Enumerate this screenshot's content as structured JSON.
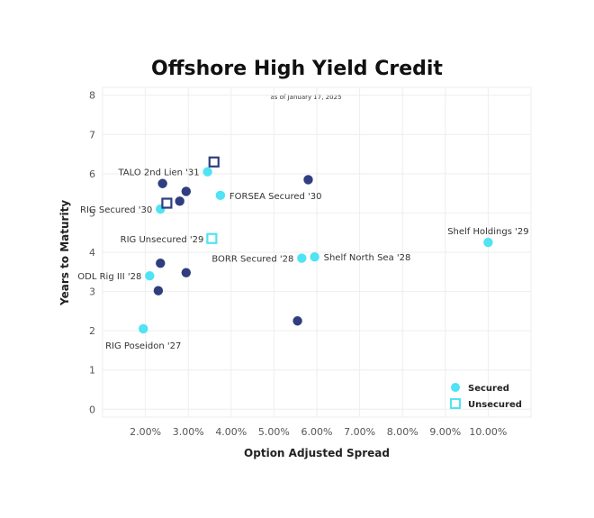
{
  "chart_data": {
    "type": "scatter",
    "title": "Offshore High Yield Credit",
    "subtitle": "as of January 17, 2025",
    "xlabel": "Option Adjusted Spread",
    "ylabel": "Years to Maturity",
    "xlim": [
      1.0,
      11.0
    ],
    "ylim": [
      -0.2,
      8.2
    ],
    "xticks": [
      2,
      3,
      4,
      5,
      6,
      7,
      8,
      9,
      10
    ],
    "xtick_labels": [
      "2.00%",
      "3.00%",
      "4.00%",
      "5.00%",
      "6.00%",
      "7.00%",
      "8.00%",
      "9.00%",
      "10.00%"
    ],
    "yticks": [
      0,
      1,
      2,
      3,
      4,
      5,
      6,
      7,
      8
    ],
    "ytick_labels": [
      "0",
      "1",
      "2",
      "3",
      "4",
      "5",
      "6",
      "7",
      "8"
    ],
    "grid": true,
    "legend_position": "bottom-right",
    "legend": [
      {
        "label": "Secured",
        "marker": "circle",
        "color": "#4fe3f4"
      },
      {
        "label": "Unsecured",
        "marker": "square",
        "color": "#4fe3f4"
      }
    ],
    "colors": {
      "secured_highlight": "#4fe3f4",
      "peer": "#2e3e7e",
      "unsecured_dark": "#2e3e7e",
      "unsecured_light": "#4fe3f4"
    },
    "points": [
      {
        "x": 3.45,
        "y": 6.05,
        "kind": "secured",
        "color": "#4fe3f4",
        "label": "TALO 2nd Lien '31",
        "label_pos": "left"
      },
      {
        "x": 3.6,
        "y": 6.3,
        "kind": "unsecured",
        "color": "#2e3e7e",
        "label": "",
        "label_pos": ""
      },
      {
        "x": 2.35,
        "y": 5.1,
        "kind": "secured",
        "color": "#4fe3f4",
        "label": "RIG Secured '30",
        "label_pos": "left"
      },
      {
        "x": 2.5,
        "y": 5.25,
        "kind": "unsecured",
        "color": "#2e3e7e",
        "label": "",
        "label_pos": ""
      },
      {
        "x": 3.75,
        "y": 5.45,
        "kind": "secured",
        "color": "#4fe3f4",
        "label": "FORSEA Secured '30",
        "label_pos": "right"
      },
      {
        "x": 3.55,
        "y": 4.35,
        "kind": "unsecured",
        "color": "#4fe3f4",
        "label": "RIG Unsecured '29",
        "label_pos": "left"
      },
      {
        "x": 10.0,
        "y": 4.25,
        "kind": "secured",
        "color": "#4fe3f4",
        "label": "Shelf Holdings '29",
        "label_pos": "above"
      },
      {
        "x": 5.65,
        "y": 3.85,
        "kind": "secured",
        "color": "#4fe3f4",
        "label": "BORR Secured '28",
        "label_pos": "left"
      },
      {
        "x": 5.95,
        "y": 3.88,
        "kind": "secured",
        "color": "#4fe3f4",
        "label": "Shelf North Sea '28",
        "label_pos": "right"
      },
      {
        "x": 2.1,
        "y": 3.4,
        "kind": "secured",
        "color": "#4fe3f4",
        "label": "ODL Rig III '28",
        "label_pos": "left"
      },
      {
        "x": 1.95,
        "y": 2.05,
        "kind": "secured",
        "color": "#4fe3f4",
        "label": "RIG Poseidon '27",
        "label_pos": "below"
      },
      {
        "x": 2.4,
        "y": 5.75,
        "kind": "peer",
        "color": "#2e3e7e",
        "label": "",
        "label_pos": ""
      },
      {
        "x": 2.95,
        "y": 5.55,
        "kind": "peer",
        "color": "#2e3e7e",
        "label": "",
        "label_pos": ""
      },
      {
        "x": 2.8,
        "y": 5.3,
        "kind": "peer",
        "color": "#2e3e7e",
        "label": "",
        "label_pos": ""
      },
      {
        "x": 5.8,
        "y": 5.85,
        "kind": "peer",
        "color": "#2e3e7e",
        "label": "",
        "label_pos": ""
      },
      {
        "x": 2.35,
        "y": 3.72,
        "kind": "peer",
        "color": "#2e3e7e",
        "label": "",
        "label_pos": ""
      },
      {
        "x": 2.95,
        "y": 3.48,
        "kind": "peer",
        "color": "#2e3e7e",
        "label": "",
        "label_pos": ""
      },
      {
        "x": 2.3,
        "y": 3.02,
        "kind": "peer",
        "color": "#2e3e7e",
        "label": "",
        "label_pos": ""
      },
      {
        "x": 5.55,
        "y": 2.25,
        "kind": "peer",
        "color": "#2e3e7e",
        "label": "",
        "label_pos": ""
      }
    ]
  }
}
